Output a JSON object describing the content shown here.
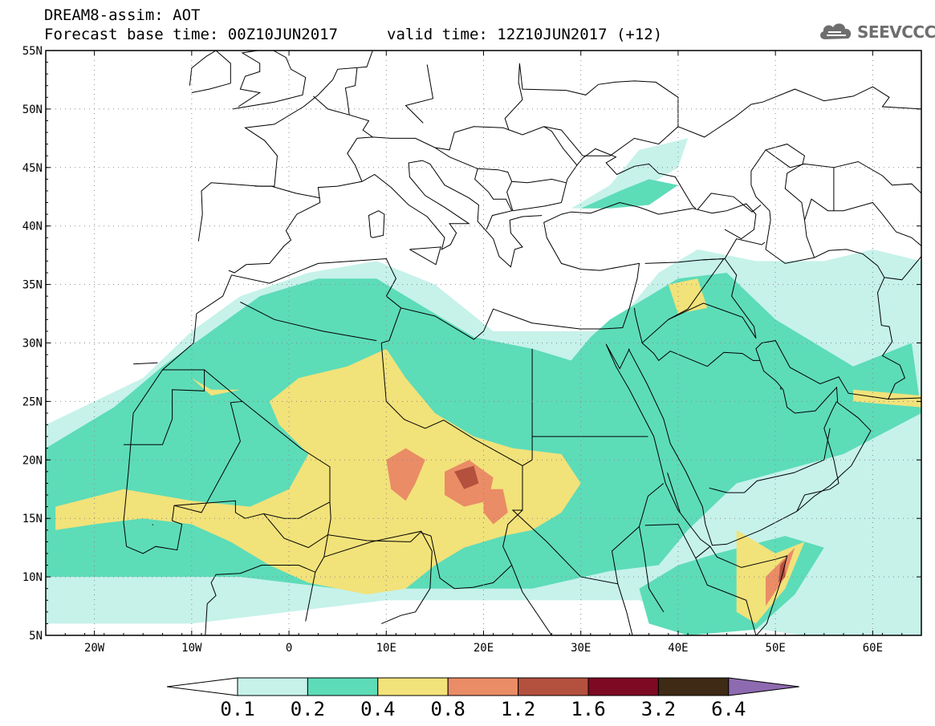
{
  "title": {
    "line1": "DREAM8-assim: AOT",
    "line2": "Forecast base time: 00Z10JUN2017",
    "line3": "valid time: 12Z10JUN2017 (+12)"
  },
  "logo": {
    "text": "SEEVCCC",
    "icon": "cloud-icon"
  },
  "map": {
    "projection": "lat-lon",
    "lon_range": [
      -25,
      65
    ],
    "lat_range": [
      5,
      55
    ],
    "grid": true,
    "lat_ticks": [
      {
        "value": 55,
        "label": "55N"
      },
      {
        "value": 50,
        "label": "50N"
      },
      {
        "value": 45,
        "label": "45N"
      },
      {
        "value": 40,
        "label": "40N"
      },
      {
        "value": 35,
        "label": "35N"
      },
      {
        "value": 30,
        "label": "30N"
      },
      {
        "value": 25,
        "label": "25N"
      },
      {
        "value": 20,
        "label": "20N"
      },
      {
        "value": 15,
        "label": "15N"
      },
      {
        "value": 10,
        "label": "10N"
      },
      {
        "value": 5,
        "label": "5N"
      }
    ],
    "lon_ticks": [
      {
        "value": -20,
        "label": "20W"
      },
      {
        "value": -10,
        "label": "10W"
      },
      {
        "value": 0,
        "label": "0"
      },
      {
        "value": 10,
        "label": "10E"
      },
      {
        "value": 20,
        "label": "20E"
      },
      {
        "value": 30,
        "label": "30E"
      },
      {
        "value": 40,
        "label": "40E"
      },
      {
        "value": 50,
        "label": "50E"
      },
      {
        "value": 60,
        "label": "60E"
      }
    ]
  },
  "colorbar": {
    "colors": [
      "#c6f2ea",
      "#5ddcb8",
      "#f2e27a",
      "#ea8c66",
      "#b4503e",
      "#7d0a22",
      "#3e2a15",
      "#8e6bb0"
    ],
    "low_end_color": "#ffffff",
    "labels": [
      "0.1",
      "0.2",
      "0.4",
      "0.8",
      "1.2",
      "1.6",
      "3.2",
      "6.4"
    ]
  },
  "chart_data": {
    "type": "heatmap",
    "variable": "AOT",
    "levels": [
      0.1,
      0.2,
      0.4,
      0.8,
      1.2,
      1.6,
      3.2,
      6.4
    ],
    "regions": [
      {
        "level": 0.1,
        "color": "#c6f2ea",
        "polygon": [
          [
            -25,
            6
          ],
          [
            -25,
            23
          ],
          [
            -15,
            27
          ],
          [
            -10,
            31
          ],
          [
            -5,
            34
          ],
          [
            2,
            36
          ],
          [
            9,
            37
          ],
          [
            15,
            35
          ],
          [
            21,
            31
          ],
          [
            26,
            31
          ],
          [
            32,
            31
          ],
          [
            35,
            33
          ],
          [
            38,
            36
          ],
          [
            42,
            38
          ],
          [
            48,
            37
          ],
          [
            55,
            37
          ],
          [
            60,
            38
          ],
          [
            65,
            37
          ],
          [
            65,
            5
          ],
          [
            53,
            5
          ],
          [
            44,
            6
          ],
          [
            36,
            8
          ],
          [
            30,
            8
          ],
          [
            20,
            8
          ],
          [
            10,
            8
          ],
          [
            0,
            7
          ],
          [
            -10,
            6
          ]
        ]
      },
      {
        "level": 0.1,
        "color": "#c6f2ea",
        "polygon": [
          [
            29,
            41.5
          ],
          [
            33,
            43.5
          ],
          [
            36,
            46.5
          ],
          [
            41,
            47.5
          ],
          [
            40,
            45
          ],
          [
            35,
            42.5
          ],
          [
            32,
            41.5
          ]
        ]
      },
      {
        "level": 0.2,
        "color": "#5ddcb8",
        "polygon": [
          [
            -25,
            10
          ],
          [
            -25,
            21
          ],
          [
            -18,
            24.5
          ],
          [
            -13,
            28
          ],
          [
            -8,
            31
          ],
          [
            -3,
            34
          ],
          [
            3,
            35.5
          ],
          [
            9,
            35.5
          ],
          [
            14,
            33
          ],
          [
            19,
            30.5
          ],
          [
            25,
            29.5
          ],
          [
            29,
            28.5
          ],
          [
            31,
            30.5
          ],
          [
            33,
            32
          ],
          [
            36,
            33.5
          ],
          [
            40,
            35.5
          ],
          [
            45,
            36
          ],
          [
            50,
            32
          ],
          [
            58,
            28
          ],
          [
            64,
            30
          ],
          [
            65,
            24
          ],
          [
            57,
            20.5
          ],
          [
            46,
            18
          ],
          [
            41,
            14
          ],
          [
            38,
            11
          ],
          [
            33,
            10.5
          ],
          [
            25,
            9
          ],
          [
            15,
            9
          ],
          [
            5,
            9
          ],
          [
            -5,
            10
          ],
          [
            -15,
            10
          ]
        ]
      },
      {
        "level": 0.2,
        "color": "#5ddcb8",
        "polygon": [
          [
            44,
            12
          ],
          [
            51,
            13.5
          ],
          [
            55,
            12.5
          ],
          [
            52,
            8.5
          ],
          [
            48,
            5.5
          ],
          [
            41,
            5
          ],
          [
            37,
            6
          ],
          [
            36,
            9
          ],
          [
            40,
            11
          ]
        ]
      },
      {
        "level": 0.2,
        "color": "#5ddcb8",
        "polygon": [
          [
            30,
            41.5
          ],
          [
            34,
            43
          ],
          [
            37,
            44
          ],
          [
            40,
            43.5
          ],
          [
            37,
            41.8
          ],
          [
            33,
            41.5
          ]
        ]
      },
      {
        "level": 0.4,
        "color": "#f2e27a",
        "polygon": [
          [
            -2,
            25
          ],
          [
            1,
            27
          ],
          [
            6,
            28
          ],
          [
            10,
            29.5
          ],
          [
            12,
            27
          ],
          [
            15,
            24
          ],
          [
            19,
            22
          ],
          [
            23,
            21
          ],
          [
            28,
            20.5
          ],
          [
            30,
            18
          ],
          [
            28,
            15.5
          ],
          [
            25,
            14
          ],
          [
            22,
            13.5
          ],
          [
            18,
            12.5
          ],
          [
            15,
            11
          ],
          [
            12,
            9
          ],
          [
            8,
            8.5
          ],
          [
            2,
            9.5
          ],
          [
            -2,
            11
          ],
          [
            -6,
            13
          ],
          [
            -10,
            14.5
          ],
          [
            -15,
            15
          ],
          [
            -20,
            14.5
          ],
          [
            -24,
            14
          ],
          [
            -24,
            16
          ],
          [
            -17,
            17.5
          ],
          [
            -10,
            16.5
          ],
          [
            -4,
            16
          ],
          [
            0,
            17.5
          ],
          [
            2,
            20.5
          ],
          [
            -1,
            23
          ]
        ]
      },
      {
        "level": 0.4,
        "color": "#f2e27a",
        "polygon": [
          [
            39,
            35
          ],
          [
            42,
            35.5
          ],
          [
            43,
            33
          ],
          [
            40,
            32.5
          ]
        ]
      },
      {
        "level": 0.4,
        "color": "#f2e27a",
        "polygon": [
          [
            46,
            14
          ],
          [
            50,
            12
          ],
          [
            53,
            13
          ],
          [
            51,
            9
          ],
          [
            48,
            6
          ],
          [
            46,
            7
          ],
          [
            46,
            10
          ]
        ]
      },
      {
        "level": 0.4,
        "color": "#f2e27a",
        "polygon": [
          [
            -10,
            27
          ],
          [
            -8,
            26
          ],
          [
            -5,
            26
          ],
          [
            -8,
            25.5
          ]
        ]
      },
      {
        "level": 0.4,
        "color": "#f2e27a",
        "polygon": [
          [
            58,
            26
          ],
          [
            65,
            25.5
          ],
          [
            65,
            24.5
          ],
          [
            58,
            25
          ]
        ]
      },
      {
        "level": 0.8,
        "color": "#ea8c66",
        "polygon": [
          [
            10,
            20
          ],
          [
            12,
            21
          ],
          [
            14,
            20
          ],
          [
            13,
            18
          ],
          [
            12,
            16.5
          ],
          [
            10.5,
            17.5
          ]
        ]
      },
      {
        "level": 0.8,
        "color": "#ea8c66",
        "polygon": [
          [
            16,
            19
          ],
          [
            18.5,
            20
          ],
          [
            21,
            18.5
          ],
          [
            20.5,
            16.5
          ],
          [
            18,
            16
          ],
          [
            16,
            17
          ]
        ]
      },
      {
        "level": 0.8,
        "color": "#ea8c66",
        "polygon": [
          [
            20,
            17.5
          ],
          [
            22,
            17.5
          ],
          [
            22.5,
            15.5
          ],
          [
            21,
            14.5
          ],
          [
            20,
            15.5
          ]
        ]
      },
      {
        "level": 0.8,
        "color": "#ea8c66",
        "polygon": [
          [
            49,
            10
          ],
          [
            52,
            12.5
          ],
          [
            51,
            10
          ],
          [
            49,
            7.5
          ]
        ]
      },
      {
        "level": 1.2,
        "color": "#b4503e",
        "polygon": [
          [
            17,
            19
          ],
          [
            19,
            19.5
          ],
          [
            19.5,
            18
          ],
          [
            18,
            17.5
          ]
        ]
      },
      {
        "level": 1.2,
        "color": "#b4503e",
        "polygon": [
          [
            50.5,
            11
          ],
          [
            51,
            11.5
          ],
          [
            51,
            10
          ],
          [
            50.3,
            9.5
          ]
        ]
      }
    ]
  }
}
